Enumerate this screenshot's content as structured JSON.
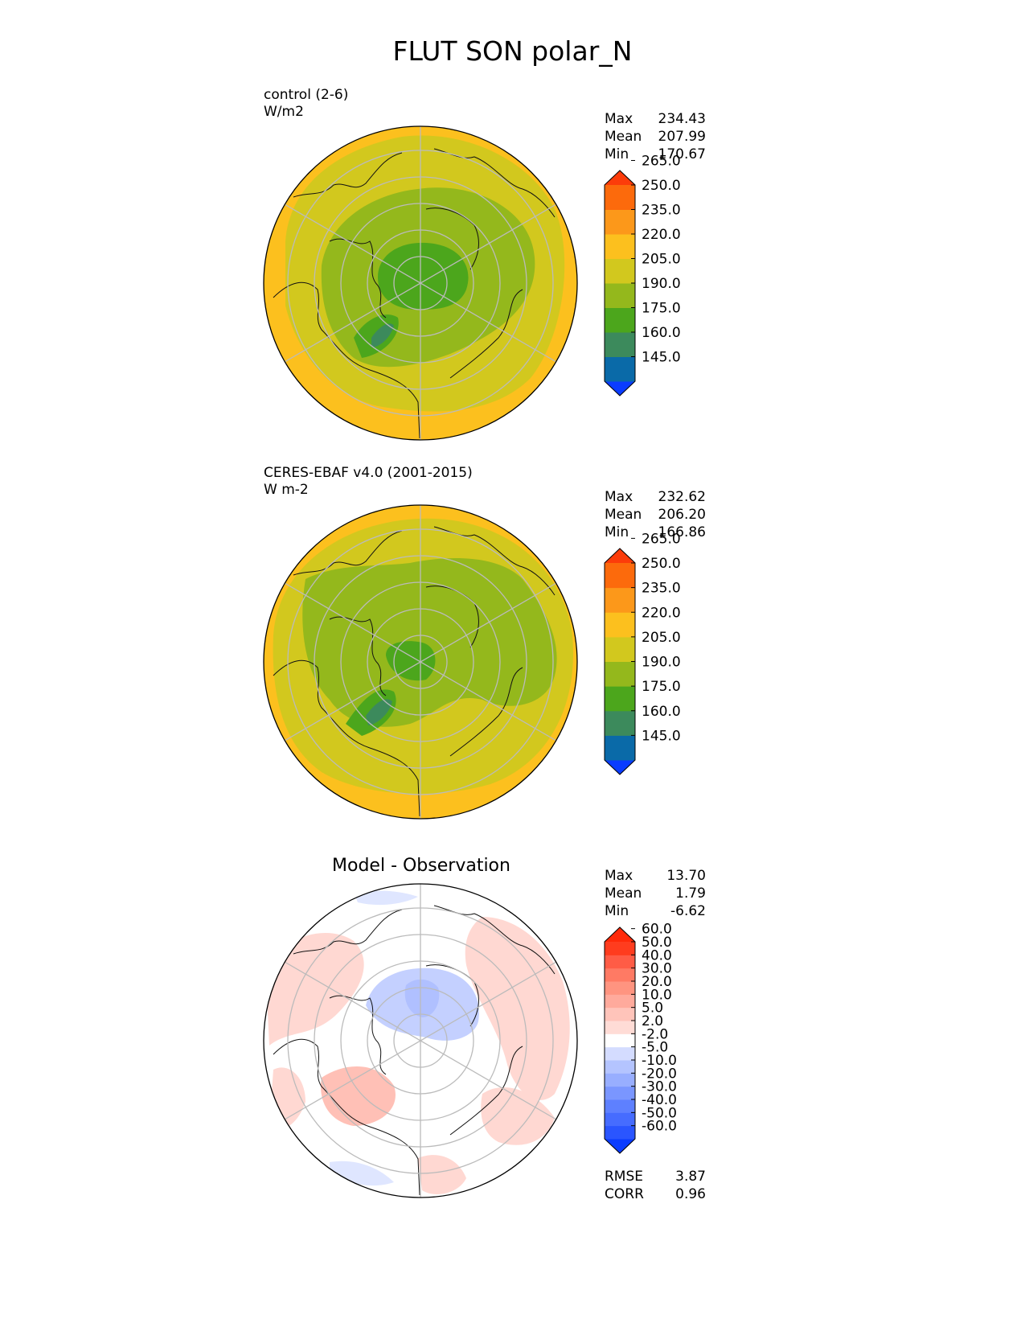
{
  "title": "FLUT SON polar_N",
  "panels": [
    {
      "name": "test",
      "label_line1": "control (2-6)",
      "label_line2": "W/m2",
      "stats": [
        {
          "k": "Max",
          "v": "234.43"
        },
        {
          "k": "Mean",
          "v": "207.99"
        },
        {
          "k": "Min",
          "v": "170.67"
        }
      ]
    },
    {
      "name": "reference",
      "label_line1": "CERES-EBAF v4.0 (2001-2015)",
      "label_line2": "W m-2",
      "stats": [
        {
          "k": "Max",
          "v": "232.62"
        },
        {
          "k": "Mean",
          "v": "206.20"
        },
        {
          "k": "Min",
          "v": "166.86"
        }
      ]
    },
    {
      "name": "difference",
      "title": "Model - Observation",
      "stats": [
        {
          "k": "Max",
          "v": "13.70"
        },
        {
          "k": "Mean",
          "v": "1.79"
        },
        {
          "k": "Min",
          "v": "-6.62"
        }
      ],
      "metrics": [
        {
          "k": "RMSE",
          "v": "3.87"
        },
        {
          "k": "CORR",
          "v": "0.96"
        }
      ]
    }
  ],
  "chart_data": [
    {
      "type": "heatmap",
      "projection": "north-polar-stereographic",
      "grid": true,
      "colorbar": {
        "ticks": [
          "145.0",
          "160.0",
          "175.0",
          "190.0",
          "205.0",
          "220.0",
          "235.0",
          "250.0",
          "265.0"
        ],
        "colors": [
          "#0a3cff",
          "#0a6aa8",
          "#3c8a5c",
          "#4ca61c",
          "#94b81c",
          "#d2c81e",
          "#fcc01e",
          "#fc981a",
          "#fc6a0c",
          "#fc3c0a"
        ],
        "extend": "both"
      }
    },
    {
      "type": "heatmap",
      "projection": "north-polar-stereographic",
      "grid": true,
      "colorbar": {
        "ticks": [
          "145.0",
          "160.0",
          "175.0",
          "190.0",
          "205.0",
          "220.0",
          "235.0",
          "250.0",
          "265.0"
        ],
        "colors": [
          "#0a3cff",
          "#0a6aa8",
          "#3c8a5c",
          "#4ca61c",
          "#94b81c",
          "#d2c81e",
          "#fcc01e",
          "#fc981a",
          "#fc6a0c",
          "#fc3c0a"
        ],
        "extend": "both"
      }
    },
    {
      "type": "heatmap",
      "projection": "north-polar-stereographic",
      "grid": true,
      "colorbar": {
        "ticks": [
          "-60.0",
          "-50.0",
          "-40.0",
          "-30.0",
          "-20.0",
          "-10.0",
          "-5.0",
          "-2.0",
          "2.0",
          "5.0",
          "10.0",
          "20.0",
          "30.0",
          "40.0",
          "50.0",
          "60.0"
        ],
        "colors": [
          "#0a3cff",
          "#2a55ff",
          "#466cff",
          "#5e80ff",
          "#7a96ff",
          "#98aeff",
          "#b4c4ff",
          "#d4dcff",
          "#ffffff",
          "#ffdcd6",
          "#ffc4ba",
          "#ffaa9c",
          "#ff9480",
          "#ff7a64",
          "#ff5c46",
          "#ff3c1e",
          "#ff2a0a"
        ],
        "extend": "both"
      }
    }
  ]
}
